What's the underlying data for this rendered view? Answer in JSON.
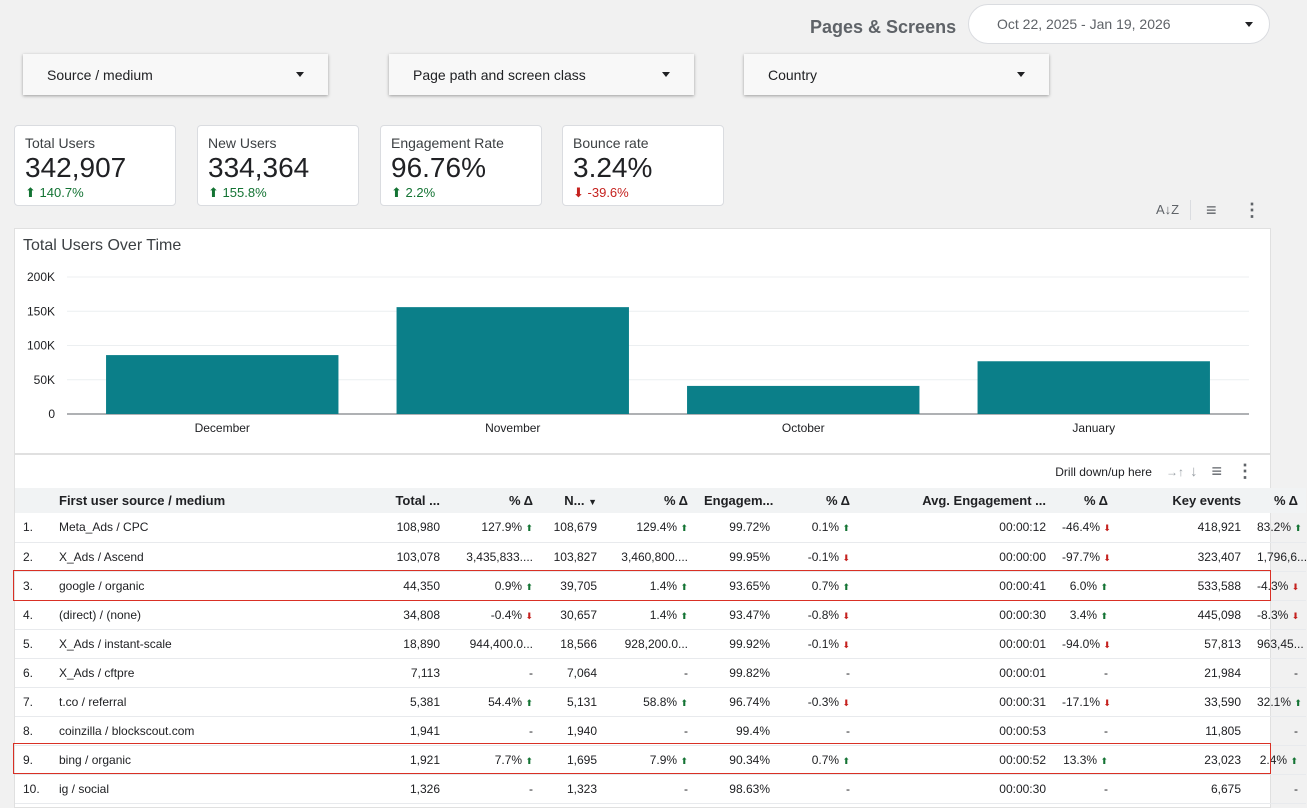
{
  "header": {
    "title": "Pages & Screens",
    "date_range": "Oct 22, 2025 - Jan 19, 2026"
  },
  "filters": [
    {
      "label": "Source / medium"
    },
    {
      "label": "Page path and screen class"
    },
    {
      "label": "Country"
    }
  ],
  "kpis": [
    {
      "label": "Total Users",
      "value": "342,907",
      "delta": "140.7%",
      "direction": "up"
    },
    {
      "label": "New Users",
      "value": "334,364",
      "delta": "155.8%",
      "direction": "up"
    },
    {
      "label": "Engagement Rate",
      "value": "96.76%",
      "delta": "2.2%",
      "direction": "up"
    },
    {
      "label": "Bounce rate",
      "value": "3.24%",
      "delta": "-39.6%",
      "direction": "down"
    }
  ],
  "icons": {
    "sort_az": "sort-az-icon",
    "filter": "filter-icon",
    "more": "more-vert-icon"
  },
  "colors": {
    "bar": "#0b7f89",
    "up": "#137333",
    "down": "#c5221f",
    "highlight": "#d93025"
  },
  "chart_data": {
    "type": "bar",
    "title": "Total Users Over Time",
    "categories": [
      "December",
      "November",
      "October",
      "January"
    ],
    "values": [
      86000,
      156000,
      41000,
      77000
    ],
    "ylim": [
      0,
      200000
    ],
    "yticks": [
      "0",
      "50K",
      "100K",
      "150K",
      "200K"
    ],
    "ytick_values": [
      0,
      50000,
      100000,
      150000,
      200000
    ],
    "grid": true
  },
  "table": {
    "drill_label": "Drill down/up here",
    "columns": [
      "First user source / medium",
      "Total ...",
      "% Δ",
      "N...",
      "% Δ",
      "Engagem...",
      "% Δ",
      "Avg. Engagement ...",
      "% Δ",
      "Key events",
      "% Δ"
    ],
    "rows": [
      {
        "idx": "1.",
        "source": "Meta_Ads / CPC",
        "total": "108,980",
        "total_d": "127.9%",
        "total_dir": "up",
        "new": "108,679",
        "new_d": "129.4%",
        "new_dir": "up",
        "eng": "99.72%",
        "eng_d": "0.1%",
        "eng_dir": "up",
        "avg": "00:00:12",
        "avg_d": "-46.4%",
        "avg_dir": "down",
        "key": "418,921",
        "key_d": "83.2%",
        "key_dir": "up"
      },
      {
        "idx": "2.",
        "source": "X_Ads / Ascend",
        "total": "103,078",
        "total_d": "3,435,833....",
        "total_dir": "",
        "new": "103,827",
        "new_d": "3,460,800....",
        "new_dir": "",
        "eng": "99.95%",
        "eng_d": "-0.1%",
        "eng_dir": "down",
        "avg": "00:00:00",
        "avg_d": "-97.7%",
        "avg_dir": "down",
        "key": "323,407",
        "key_d": "1,796,6...",
        "key_dir": ""
      },
      {
        "idx": "3.",
        "source": "google / organic",
        "total": "44,350",
        "total_d": "0.9%",
        "total_dir": "up",
        "new": "39,705",
        "new_d": "1.4%",
        "new_dir": "up",
        "eng": "93.65%",
        "eng_d": "0.7%",
        "eng_dir": "up",
        "avg": "00:00:41",
        "avg_d": "6.0%",
        "avg_dir": "up",
        "key": "533,588",
        "key_d": "-4.3%",
        "key_dir": "down"
      },
      {
        "idx": "4.",
        "source": "(direct) / (none)",
        "total": "34,808",
        "total_d": "-0.4%",
        "total_dir": "down",
        "new": "30,657",
        "new_d": "1.4%",
        "new_dir": "up",
        "eng": "93.47%",
        "eng_d": "-0.8%",
        "eng_dir": "down",
        "avg": "00:00:30",
        "avg_d": "3.4%",
        "avg_dir": "up",
        "key": "445,098",
        "key_d": "-8.3%",
        "key_dir": "down"
      },
      {
        "idx": "5.",
        "source": "X_Ads / instant-scale",
        "total": "18,890",
        "total_d": "944,400.0...",
        "total_dir": "",
        "new": "18,566",
        "new_d": "928,200.0...",
        "new_dir": "",
        "eng": "99.92%",
        "eng_d": "-0.1%",
        "eng_dir": "down",
        "avg": "00:00:01",
        "avg_d": "-94.0%",
        "avg_dir": "down",
        "key": "57,813",
        "key_d": "963,45...",
        "key_dir": ""
      },
      {
        "idx": "6.",
        "source": "X_Ads / cftpre",
        "total": "7,113",
        "total_d": "-",
        "total_dir": "",
        "new": "7,064",
        "new_d": "-",
        "new_dir": "",
        "eng": "99.82%",
        "eng_d": "-",
        "eng_dir": "",
        "avg": "00:00:01",
        "avg_d": "-",
        "avg_dir": "",
        "key": "21,984",
        "key_d": "-",
        "key_dir": ""
      },
      {
        "idx": "7.",
        "source": "t.co / referral",
        "total": "5,381",
        "total_d": "54.4%",
        "total_dir": "up",
        "new": "5,131",
        "new_d": "58.8%",
        "new_dir": "up",
        "eng": "96.74%",
        "eng_d": "-0.3%",
        "eng_dir": "down",
        "avg": "00:00:31",
        "avg_d": "-17.1%",
        "avg_dir": "down",
        "key": "33,590",
        "key_d": "32.1%",
        "key_dir": "up"
      },
      {
        "idx": "8.",
        "source": "coinzilla / blockscout.com",
        "total": "1,941",
        "total_d": "-",
        "total_dir": "",
        "new": "1,940",
        "new_d": "-",
        "new_dir": "",
        "eng": "99.4%",
        "eng_d": "-",
        "eng_dir": "",
        "avg": "00:00:53",
        "avg_d": "-",
        "avg_dir": "",
        "key": "11,805",
        "key_d": "-",
        "key_dir": ""
      },
      {
        "idx": "9.",
        "source": "bing / organic",
        "total": "1,921",
        "total_d": "7.7%",
        "total_dir": "up",
        "new": "1,695",
        "new_d": "7.9%",
        "new_dir": "up",
        "eng": "90.34%",
        "eng_d": "0.7%",
        "eng_dir": "up",
        "avg": "00:00:52",
        "avg_d": "13.3%",
        "avg_dir": "up",
        "key": "23,023",
        "key_d": "2.4%",
        "key_dir": "up"
      },
      {
        "idx": "10.",
        "source": "ig / social",
        "total": "1,326",
        "total_d": "-",
        "total_dir": "",
        "new": "1,323",
        "new_d": "-",
        "new_dir": "",
        "eng": "98.63%",
        "eng_d": "-",
        "eng_dir": "",
        "avg": "00:00:30",
        "avg_d": "-",
        "avg_dir": "",
        "key": "6,675",
        "key_d": "-",
        "key_dir": ""
      }
    ]
  }
}
